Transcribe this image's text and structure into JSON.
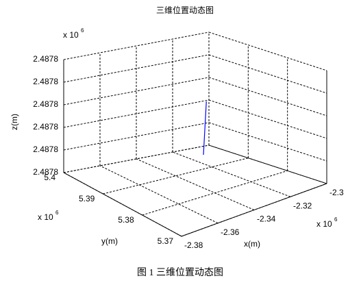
{
  "chart_data": {
    "type": "line3d",
    "title": "三维位置动态图",
    "series": [
      {
        "color": "#0000ff",
        "x": [
          -2.316,
          -2.3144
        ],
        "y": [
          5.394,
          5.394
        ],
        "z": [
          2.487758,
          2.487793
        ]
      }
    ],
    "xlim": [
      -2.38,
      -2.3
    ],
    "xticks": [
      -2.38,
      -2.36,
      -2.34,
      -2.32,
      -2.3
    ],
    "ylim": [
      5.37,
      5.4
    ],
    "yticks": [
      5.37,
      5.38,
      5.39,
      5.4
    ],
    "zlim": [
      2.487755,
      2.48783
    ],
    "zticks": [
      {
        "value": 2.487755,
        "label": "2.4878"
      },
      {
        "value": 2.48777,
        "label": "2.4878"
      },
      {
        "value": 2.487785,
        "label": "2.4878"
      },
      2.4878,
      {
        "value": 2.487815,
        "label": "2.4878"
      },
      {
        "value": 2.48783,
        "label": "2.4878"
      }
    ],
    "xlabel": "x(m)",
    "ylabel": "y(m)",
    "zlabel": "z(m)",
    "x_multiplier": {
      "base": "x 10",
      "exponent": "6"
    },
    "y_multiplier": {
      "base": "x 10",
      "exponent": "6"
    },
    "z_multiplier": {
      "base": "x 10",
      "exponent": "6"
    },
    "grid": true
  },
  "caption": "图 1  三维位置动态图"
}
